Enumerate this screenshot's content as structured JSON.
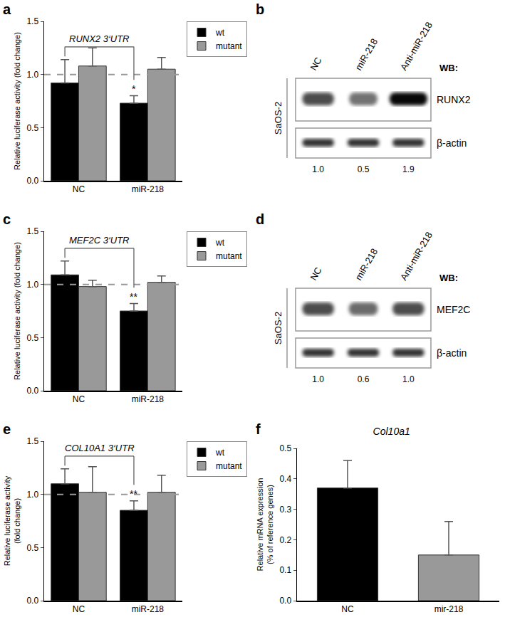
{
  "chart_data": [
    {
      "panel": "a",
      "type": "bar",
      "categories": [
        "NC",
        "miR-218"
      ],
      "y_label": "Relative luciferase activity (fold change)",
      "annotation": "RUNX2 3‘UTR",
      "significance": "*",
      "series": [
        {
          "name": "wt",
          "color": "#000000",
          "values": [
            0.92,
            0.73
          ],
          "errors": [
            0.22,
            0.07
          ]
        },
        {
          "name": "mutant",
          "color": "#999999",
          "values": [
            1.08,
            1.05
          ],
          "errors": [
            0.17,
            0.11
          ]
        }
      ],
      "reference_line": 1,
      "ylim": [
        0,
        1.5
      ],
      "yticks": [
        {
          "value": 0,
          "label": "0.0"
        },
        {
          "value": 0.5,
          "label": "0.5"
        },
        {
          "value": 1,
          "label": "1.0"
        },
        {
          "value": 1.5,
          "label": "1.5"
        }
      ],
      "grid": false,
      "legend": "top right"
    },
    {
      "panel": "c",
      "type": "bar",
      "categories": [
        "NC",
        "miR-218"
      ],
      "y_label": "Relative luciferase activity (fold change)",
      "annotation": "MEF2C 3‘UTR",
      "significance": "**",
      "series": [
        {
          "name": "wt",
          "color": "#000000",
          "values": [
            1.09,
            0.75
          ],
          "errors": [
            0.13,
            0.07
          ]
        },
        {
          "name": "mutant",
          "color": "#999999",
          "values": [
            0.98,
            1.02
          ],
          "errors": [
            0.06,
            0.06
          ]
        }
      ],
      "reference_line": 1,
      "ylim": [
        0,
        1.5
      ],
      "yticks": [
        {
          "value": 0,
          "label": "0.0"
        },
        {
          "value": 0.5,
          "label": "0.5"
        },
        {
          "value": 1,
          "label": "1.0"
        },
        {
          "value": 1.5,
          "label": "1.5"
        }
      ],
      "grid": false,
      "legend": "top right"
    },
    {
      "panel": "e",
      "type": "bar",
      "categories": [
        "NC",
        "miR-218"
      ],
      "y_label": "Relative luciferase activity\n(fold change)",
      "annotation": "COL10A1 3‘UTR",
      "significance": "**",
      "series": [
        {
          "name": "wt",
          "color": "#000000",
          "values": [
            1.1,
            0.85
          ],
          "errors": [
            0.14,
            0.09
          ]
        },
        {
          "name": "mutant",
          "color": "#999999",
          "values": [
            1.02,
            1.02
          ],
          "errors": [
            0.24,
            0.16
          ]
        }
      ],
      "reference_line": 1,
      "ylim": [
        0,
        1.5
      ],
      "yticks": [
        {
          "value": 0,
          "label": "0.0"
        },
        {
          "value": 0.5,
          "label": "0.5"
        },
        {
          "value": 1,
          "label": "1.0"
        },
        {
          "value": 1.5,
          "label": "1.5"
        }
      ],
      "grid": false,
      "legend": "top right"
    },
    {
      "panel": "f",
      "type": "bar",
      "title": "Col10a1",
      "categories": [
        "NC",
        "mir-218"
      ],
      "y_label": "Relative mRNA expression\n(% of reference genes)",
      "values": [
        0.37,
        0.15
      ],
      "errors": [
        0.09,
        0.11
      ],
      "colors": [
        "#000000",
        "#999999"
      ],
      "ylim": [
        0,
        0.5
      ],
      "yticks": [
        {
          "value": 0,
          "label": "0.0"
        },
        {
          "value": 0.1,
          "label": "0.1"
        },
        {
          "value": 0.2,
          "label": "0.2"
        },
        {
          "value": 0.3,
          "label": "0.3"
        },
        {
          "value": 0.4,
          "label": "0.4"
        },
        {
          "value": 0.5,
          "label": "0.5"
        }
      ],
      "grid": false
    }
  ],
  "blots": [
    {
      "panel": "b",
      "cell_line": "SaOS-2",
      "method": "WB:",
      "lanes": [
        "NC",
        "miR-218",
        "Anti-miR-218"
      ],
      "proteins": [
        "RUNX2",
        "β-actin"
      ],
      "quantification": [
        {
          "value": 1,
          "label": "1.0"
        },
        {
          "value": 0.5,
          "label": "0.5"
        },
        {
          "value": 1.9,
          "label": "1.9"
        }
      ]
    },
    {
      "panel": "d",
      "cell_line": "SaOS-2",
      "method": "WB:",
      "lanes": [
        "NC",
        "miR-218",
        "Anti-miR-218"
      ],
      "proteins": [
        "MEF2C",
        "β-actin"
      ],
      "quantification": [
        {
          "value": 1,
          "label": "1.0"
        },
        {
          "value": 0.6,
          "label": "0.6"
        },
        {
          "value": 1,
          "label": "1.0"
        }
      ]
    }
  ]
}
